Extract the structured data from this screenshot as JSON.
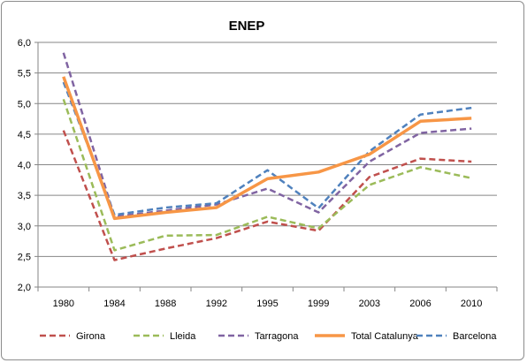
{
  "chart_data": {
    "type": "line",
    "title": "ENEP",
    "xlabel": "",
    "ylabel": "",
    "categories": [
      "1980",
      "1984",
      "1988",
      "1992",
      "1995",
      "1999",
      "2003",
      "2006",
      "2010"
    ],
    "ylim": [
      2.0,
      6.0
    ],
    "yticks": [
      "2,0",
      "2,5",
      "3,0",
      "3,5",
      "4,0",
      "4,5",
      "5,0",
      "5,5",
      "6,0"
    ],
    "yticks_values": [
      2.0,
      2.5,
      3.0,
      3.5,
      4.0,
      4.5,
      5.0,
      5.5,
      6.0
    ],
    "grid": "horizontal",
    "legend_position": "bottom",
    "series": [
      {
        "name": "Girona",
        "color": "#c0504d",
        "style": "dashed",
        "values": [
          4.56,
          2.44,
          2.63,
          2.8,
          3.07,
          2.92,
          3.8,
          4.1,
          4.05
        ]
      },
      {
        "name": "Lleida",
        "color": "#9bbb59",
        "style": "dashed",
        "values": [
          5.07,
          2.6,
          2.84,
          2.85,
          3.15,
          2.96,
          3.67,
          3.96,
          3.78
        ]
      },
      {
        "name": "Tarragona",
        "color": "#8064a2",
        "style": "dashed",
        "values": [
          5.83,
          3.15,
          3.25,
          3.35,
          3.61,
          3.22,
          4.05,
          4.52,
          4.59
        ]
      },
      {
        "name": "Total Catalunya",
        "color": "#f79646",
        "style": "solid",
        "values": [
          5.44,
          3.12,
          3.22,
          3.3,
          3.77,
          3.88,
          4.17,
          4.71,
          4.76
        ]
      },
      {
        "name": "Barcelona",
        "color": "#4f81bd",
        "style": "dashed",
        "values": [
          5.35,
          3.18,
          3.3,
          3.37,
          3.91,
          3.29,
          4.22,
          4.82,
          4.93
        ]
      }
    ]
  }
}
